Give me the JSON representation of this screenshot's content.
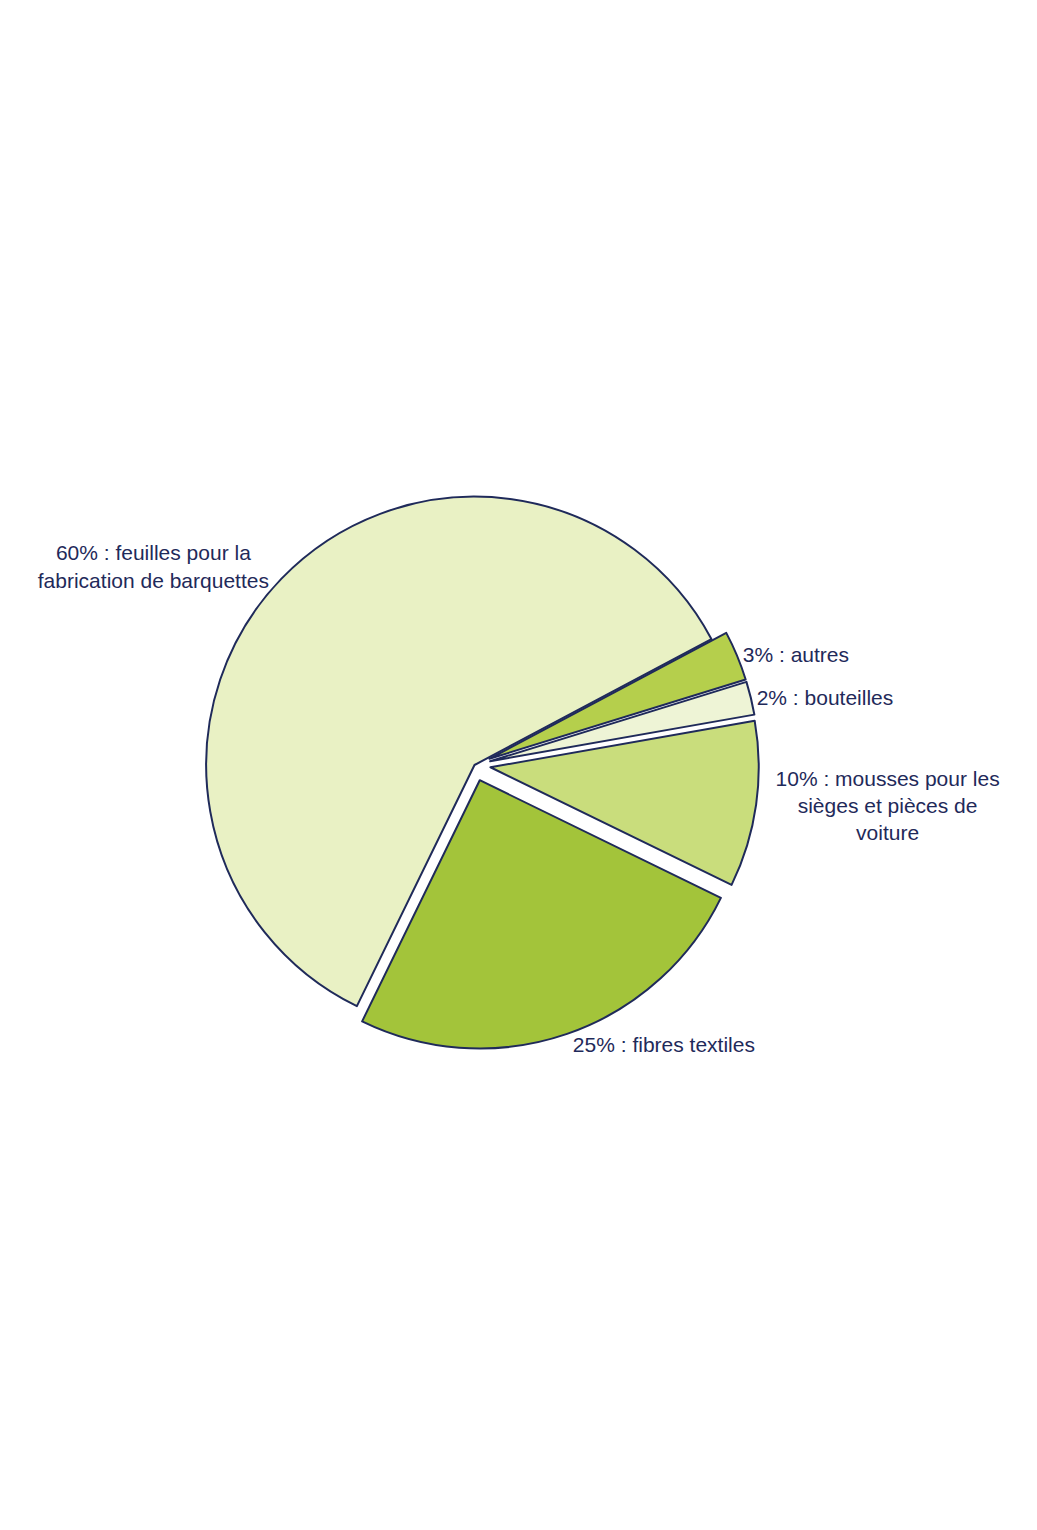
{
  "chart_data": {
    "type": "pie",
    "categories": [
      "3% : autres",
      "2% : bouteilles",
      "10% : mousses pour les sièges et pièces de voiture",
      "25% : fibres textiles",
      "60% : feuilles pour la fabrication de barquettes"
    ],
    "values": [
      3,
      2,
      10,
      25,
      60
    ],
    "colors": [
      "#b5cf4c",
      "#eef4d6",
      "#c9dd7c",
      "#a3c43a",
      "#e9f1c4"
    ]
  }
}
